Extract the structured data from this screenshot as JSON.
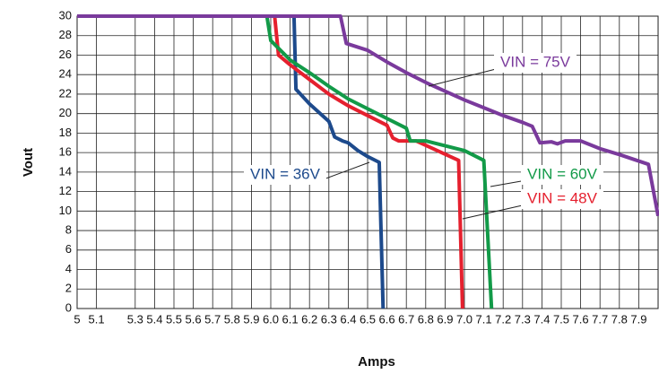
{
  "chart_data": {
    "type": "line",
    "x_label": "Amps",
    "y_label": "Vout",
    "xlim": [
      5,
      8
    ],
    "ylim": [
      0,
      30
    ],
    "xticks": [
      5,
      5.1,
      5.3,
      5.4,
      5.5,
      5.6,
      5.7,
      5.8,
      5.9,
      {
        "value": 6,
        "label": "6.0"
      },
      6.1,
      6.2,
      6.3,
      6.4,
      6.5,
      6.6,
      6.7,
      6.8,
      6.9,
      {
        "value": 7,
        "label": "7.0"
      },
      7.1,
      7.2,
      7.3,
      7.4,
      7.5,
      7.6,
      7.7,
      7.8,
      7.9
    ],
    "yticks": [
      0,
      2,
      4,
      6,
      8,
      10,
      12,
      14,
      16,
      18,
      20,
      22,
      24,
      26,
      28,
      30
    ],
    "grid": true,
    "series": [
      {
        "name": "VIN = 36V",
        "color": "#1d4a8c",
        "x": [
          5,
          6.12,
          6.13,
          6.2,
          6.3,
          6.33,
          6.37,
          6.4,
          6.45,
          6.5,
          6.56,
          6.58
        ],
        "values": [
          30,
          30,
          22.5,
          21,
          19.2,
          17.6,
          17.2,
          17,
          16.2,
          15.6,
          15,
          0
        ]
      },
      {
        "name": "VIN = 48V",
        "color": "#e5202e",
        "x": [
          5,
          6.02,
          6.04,
          6.1,
          6.2,
          6.3,
          6.4,
          6.5,
          6.6,
          6.63,
          6.66,
          6.75,
          6.97,
          6.99
        ],
        "values": [
          30,
          30,
          26,
          25,
          23.5,
          22,
          20.8,
          19.8,
          18.8,
          17.5,
          17.2,
          17.2,
          15.2,
          0
        ]
      },
      {
        "name": "VIN = 60V",
        "color": "#129a48",
        "x": [
          5,
          5.98,
          6.0,
          6.1,
          6.2,
          6.3,
          6.4,
          6.5,
          6.6,
          6.7,
          6.72,
          6.8,
          7.0,
          7.1,
          7.14
        ],
        "values": [
          30,
          30,
          27.5,
          25.5,
          24.2,
          22.8,
          21.5,
          20.5,
          19.5,
          18.5,
          17.2,
          17.2,
          16.2,
          15.2,
          0
        ]
      },
      {
        "name": "VIN = 75V",
        "color": "#7a3a9c",
        "x": [
          5,
          6.36,
          6.39,
          6.5,
          6.6,
          6.7,
          6.8,
          6.9,
          7.0,
          7.1,
          7.2,
          7.3,
          7.35,
          7.39,
          7.45,
          7.48,
          7.52,
          7.6,
          7.7,
          7.8,
          7.95,
          8.0
        ],
        "values": [
          30,
          30,
          27.2,
          26.5,
          25.3,
          24.2,
          23.2,
          22.3,
          21.4,
          20.6,
          19.8,
          19.1,
          18.7,
          17,
          17.1,
          16.9,
          17.2,
          17.2,
          16.4,
          15.8,
          14.8,
          9.5
        ]
      }
    ]
  }
}
